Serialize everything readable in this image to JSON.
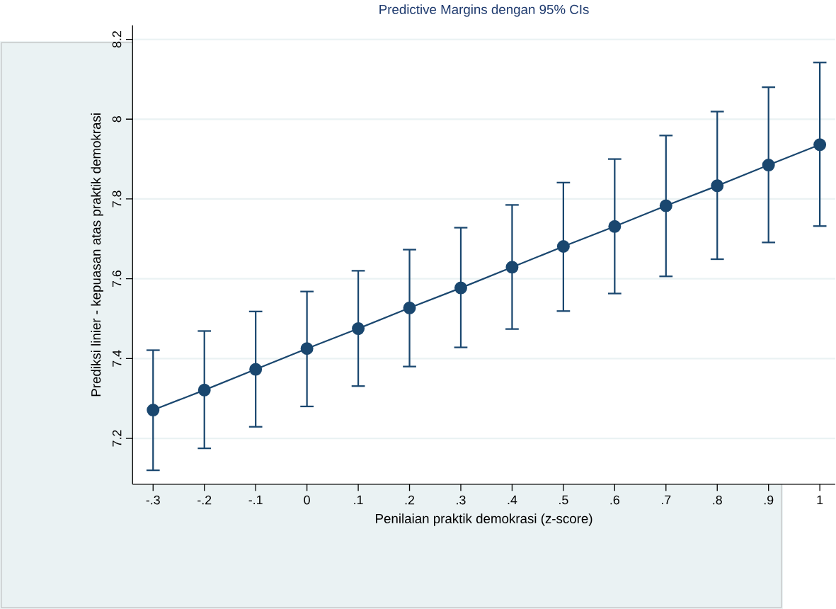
{
  "chart_data": {
    "type": "line",
    "title": "Predictive Margins dengan 95% CIs",
    "xlabel": "Penilaian praktik demokrasi (z-score)",
    "ylabel": "Prediksi linier - kepuasan atas praktik demokrasi",
    "x": [
      -0.3,
      -0.2,
      -0.1,
      0,
      0.1,
      0.2,
      0.3,
      0.4,
      0.5,
      0.6,
      0.7,
      0.8,
      0.9,
      1
    ],
    "series": [
      {
        "color": "#1a476f",
        "values": [
          7.271,
          7.321,
          7.373,
          7.425,
          7.475,
          7.527,
          7.577,
          7.629,
          7.681,
          7.731,
          7.783,
          7.833,
          7.885,
          7.936
        ],
        "errors": [
          [
            7.12,
            7.421
          ],
          [
            7.175,
            7.469
          ],
          [
            7.229,
            7.518
          ],
          [
            7.28,
            7.568
          ],
          [
            7.331,
            7.62
          ],
          [
            7.38,
            7.673
          ],
          [
            7.428,
            7.728
          ],
          [
            7.474,
            7.785
          ],
          [
            7.519,
            7.841
          ],
          [
            7.563,
            7.9
          ],
          [
            7.606,
            7.959
          ],
          [
            7.649,
            8.019
          ],
          [
            7.691,
            8.08
          ],
          [
            7.732,
            8.142
          ]
        ]
      }
    ],
    "marker": "circle",
    "line_style": "solid",
    "grid": "y",
    "xlim": [
      -0.34,
      1.03
    ],
    "ylim": [
      7.085,
      8.235
    ],
    "xticks": [
      {
        "value": -0.3,
        "label": "-.3"
      },
      {
        "value": -0.2,
        "label": "-.2"
      },
      {
        "value": -0.1,
        "label": "-.1"
      },
      0,
      {
        "value": 0.1,
        "label": ".1"
      },
      {
        "value": 0.2,
        "label": ".2"
      },
      {
        "value": 0.3,
        "label": ".3"
      },
      {
        "value": 0.4,
        "label": ".4"
      },
      {
        "value": 0.5,
        "label": ".5"
      },
      {
        "value": 0.6,
        "label": ".6"
      },
      {
        "value": 0.7,
        "label": ".7"
      },
      {
        "value": 0.8,
        "label": ".8"
      },
      {
        "value": 0.9,
        "label": ".9"
      },
      1
    ],
    "yticks": [
      7.2,
      7.4,
      7.6,
      7.8,
      8,
      8.2
    ]
  }
}
